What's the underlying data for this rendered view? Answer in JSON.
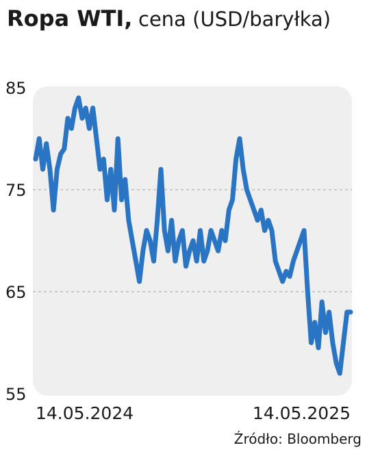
{
  "chart_data": {
    "type": "line",
    "title": "Ropa WTI,",
    "subtitle": "cena (USD/baryłka)",
    "source": "Źródło: Bloomberg",
    "categories": [
      "14.05.2024",
      null,
      null,
      null,
      null,
      null,
      null,
      null,
      null,
      null,
      null,
      null,
      null,
      null,
      null,
      null,
      null,
      null,
      null,
      null,
      null,
      null,
      null,
      null,
      null,
      null,
      null,
      null,
      null,
      null,
      null,
      null,
      null,
      null,
      null,
      null,
      null,
      null,
      null,
      null,
      null,
      null,
      null,
      null,
      null,
      null,
      null,
      null,
      null,
      null,
      null,
      null,
      null,
      null,
      null,
      null,
      null,
      null,
      null,
      null,
      null,
      null,
      null,
      null,
      null,
      null,
      null,
      null,
      null,
      null,
      null,
      null,
      null,
      null,
      null,
      null,
      null,
      null,
      null,
      null,
      null,
      null,
      null,
      null,
      null,
      null,
      null,
      null,
      "14.05.2025"
    ],
    "series": [
      {
        "name": "WTI",
        "color": "#2a74c4",
        "values": [
          78,
          80,
          77,
          79.5,
          77,
          73,
          77,
          78.5,
          79,
          82,
          81,
          83,
          84,
          82,
          83,
          81,
          83,
          80,
          77,
          78,
          74,
          77,
          73,
          80,
          74,
          76,
          72,
          70,
          68,
          66,
          69,
          71,
          70,
          68,
          72,
          77,
          71,
          69,
          72,
          68,
          70,
          71,
          67.5,
          69,
          70,
          68,
          71,
          68,
          69,
          71,
          70,
          69,
          71,
          70,
          73,
          74,
          78,
          80,
          77,
          75,
          74,
          73,
          72,
          73,
          71,
          72,
          71,
          68,
          67,
          66,
          67,
          66.5,
          68,
          69,
          70,
          71,
          65,
          60,
          62,
          59.5,
          64,
          61,
          63,
          60,
          58,
          57,
          60,
          63,
          63
        ]
      }
    ],
    "ylim": [
      55,
      85
    ],
    "yticks": [
      55,
      65,
      75,
      85
    ],
    "grid": true
  }
}
